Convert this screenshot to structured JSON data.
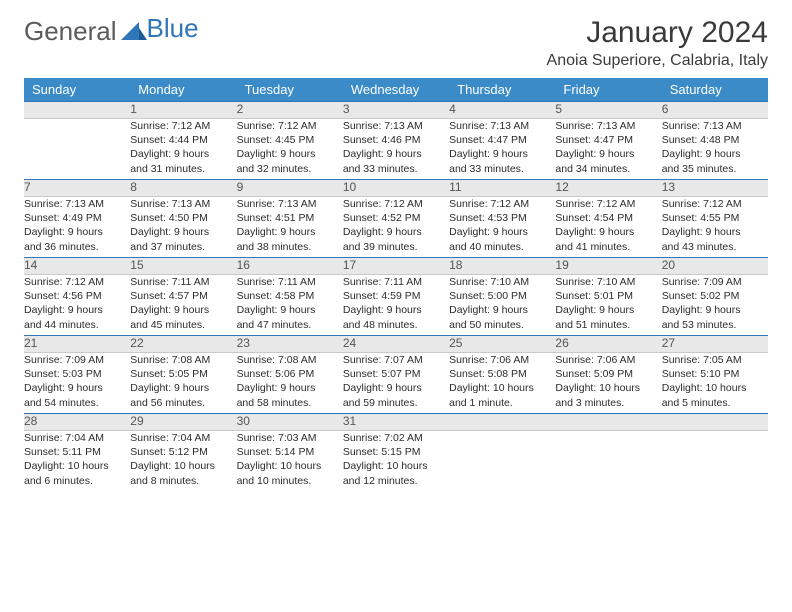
{
  "logo": {
    "partA": "General",
    "partB": "Blue"
  },
  "title": "January 2024",
  "location": "Anoia Superiore, Calabria, Italy",
  "weekdays": [
    "Sunday",
    "Monday",
    "Tuesday",
    "Wednesday",
    "Thursday",
    "Friday",
    "Saturday"
  ],
  "colors": {
    "header_bg": "#3b8bc9",
    "daynum_bg": "#e8e8e8",
    "daynum_border_top": "#2f76b8"
  },
  "weeks": [
    [
      {
        "n": "",
        "sr": "",
        "ss": "",
        "dl1": "",
        "dl2": ""
      },
      {
        "n": "1",
        "sr": "Sunrise: 7:12 AM",
        "ss": "Sunset: 4:44 PM",
        "dl1": "Daylight: 9 hours",
        "dl2": "and 31 minutes."
      },
      {
        "n": "2",
        "sr": "Sunrise: 7:12 AM",
        "ss": "Sunset: 4:45 PM",
        "dl1": "Daylight: 9 hours",
        "dl2": "and 32 minutes."
      },
      {
        "n": "3",
        "sr": "Sunrise: 7:13 AM",
        "ss": "Sunset: 4:46 PM",
        "dl1": "Daylight: 9 hours",
        "dl2": "and 33 minutes."
      },
      {
        "n": "4",
        "sr": "Sunrise: 7:13 AM",
        "ss": "Sunset: 4:47 PM",
        "dl1": "Daylight: 9 hours",
        "dl2": "and 33 minutes."
      },
      {
        "n": "5",
        "sr": "Sunrise: 7:13 AM",
        "ss": "Sunset: 4:47 PM",
        "dl1": "Daylight: 9 hours",
        "dl2": "and 34 minutes."
      },
      {
        "n": "6",
        "sr": "Sunrise: 7:13 AM",
        "ss": "Sunset: 4:48 PM",
        "dl1": "Daylight: 9 hours",
        "dl2": "and 35 minutes."
      }
    ],
    [
      {
        "n": "7",
        "sr": "Sunrise: 7:13 AM",
        "ss": "Sunset: 4:49 PM",
        "dl1": "Daylight: 9 hours",
        "dl2": "and 36 minutes."
      },
      {
        "n": "8",
        "sr": "Sunrise: 7:13 AM",
        "ss": "Sunset: 4:50 PM",
        "dl1": "Daylight: 9 hours",
        "dl2": "and 37 minutes."
      },
      {
        "n": "9",
        "sr": "Sunrise: 7:13 AM",
        "ss": "Sunset: 4:51 PM",
        "dl1": "Daylight: 9 hours",
        "dl2": "and 38 minutes."
      },
      {
        "n": "10",
        "sr": "Sunrise: 7:12 AM",
        "ss": "Sunset: 4:52 PM",
        "dl1": "Daylight: 9 hours",
        "dl2": "and 39 minutes."
      },
      {
        "n": "11",
        "sr": "Sunrise: 7:12 AM",
        "ss": "Sunset: 4:53 PM",
        "dl1": "Daylight: 9 hours",
        "dl2": "and 40 minutes."
      },
      {
        "n": "12",
        "sr": "Sunrise: 7:12 AM",
        "ss": "Sunset: 4:54 PM",
        "dl1": "Daylight: 9 hours",
        "dl2": "and 41 minutes."
      },
      {
        "n": "13",
        "sr": "Sunrise: 7:12 AM",
        "ss": "Sunset: 4:55 PM",
        "dl1": "Daylight: 9 hours",
        "dl2": "and 43 minutes."
      }
    ],
    [
      {
        "n": "14",
        "sr": "Sunrise: 7:12 AM",
        "ss": "Sunset: 4:56 PM",
        "dl1": "Daylight: 9 hours",
        "dl2": "and 44 minutes."
      },
      {
        "n": "15",
        "sr": "Sunrise: 7:11 AM",
        "ss": "Sunset: 4:57 PM",
        "dl1": "Daylight: 9 hours",
        "dl2": "and 45 minutes."
      },
      {
        "n": "16",
        "sr": "Sunrise: 7:11 AM",
        "ss": "Sunset: 4:58 PM",
        "dl1": "Daylight: 9 hours",
        "dl2": "and 47 minutes."
      },
      {
        "n": "17",
        "sr": "Sunrise: 7:11 AM",
        "ss": "Sunset: 4:59 PM",
        "dl1": "Daylight: 9 hours",
        "dl2": "and 48 minutes."
      },
      {
        "n": "18",
        "sr": "Sunrise: 7:10 AM",
        "ss": "Sunset: 5:00 PM",
        "dl1": "Daylight: 9 hours",
        "dl2": "and 50 minutes."
      },
      {
        "n": "19",
        "sr": "Sunrise: 7:10 AM",
        "ss": "Sunset: 5:01 PM",
        "dl1": "Daylight: 9 hours",
        "dl2": "and 51 minutes."
      },
      {
        "n": "20",
        "sr": "Sunrise: 7:09 AM",
        "ss": "Sunset: 5:02 PM",
        "dl1": "Daylight: 9 hours",
        "dl2": "and 53 minutes."
      }
    ],
    [
      {
        "n": "21",
        "sr": "Sunrise: 7:09 AM",
        "ss": "Sunset: 5:03 PM",
        "dl1": "Daylight: 9 hours",
        "dl2": "and 54 minutes."
      },
      {
        "n": "22",
        "sr": "Sunrise: 7:08 AM",
        "ss": "Sunset: 5:05 PM",
        "dl1": "Daylight: 9 hours",
        "dl2": "and 56 minutes."
      },
      {
        "n": "23",
        "sr": "Sunrise: 7:08 AM",
        "ss": "Sunset: 5:06 PM",
        "dl1": "Daylight: 9 hours",
        "dl2": "and 58 minutes."
      },
      {
        "n": "24",
        "sr": "Sunrise: 7:07 AM",
        "ss": "Sunset: 5:07 PM",
        "dl1": "Daylight: 9 hours",
        "dl2": "and 59 minutes."
      },
      {
        "n": "25",
        "sr": "Sunrise: 7:06 AM",
        "ss": "Sunset: 5:08 PM",
        "dl1": "Daylight: 10 hours",
        "dl2": "and 1 minute."
      },
      {
        "n": "26",
        "sr": "Sunrise: 7:06 AM",
        "ss": "Sunset: 5:09 PM",
        "dl1": "Daylight: 10 hours",
        "dl2": "and 3 minutes."
      },
      {
        "n": "27",
        "sr": "Sunrise: 7:05 AM",
        "ss": "Sunset: 5:10 PM",
        "dl1": "Daylight: 10 hours",
        "dl2": "and 5 minutes."
      }
    ],
    [
      {
        "n": "28",
        "sr": "Sunrise: 7:04 AM",
        "ss": "Sunset: 5:11 PM",
        "dl1": "Daylight: 10 hours",
        "dl2": "and 6 minutes."
      },
      {
        "n": "29",
        "sr": "Sunrise: 7:04 AM",
        "ss": "Sunset: 5:12 PM",
        "dl1": "Daylight: 10 hours",
        "dl2": "and 8 minutes."
      },
      {
        "n": "30",
        "sr": "Sunrise: 7:03 AM",
        "ss": "Sunset: 5:14 PM",
        "dl1": "Daylight: 10 hours",
        "dl2": "and 10 minutes."
      },
      {
        "n": "31",
        "sr": "Sunrise: 7:02 AM",
        "ss": "Sunset: 5:15 PM",
        "dl1": "Daylight: 10 hours",
        "dl2": "and 12 minutes."
      },
      {
        "n": "",
        "sr": "",
        "ss": "",
        "dl1": "",
        "dl2": ""
      },
      {
        "n": "",
        "sr": "",
        "ss": "",
        "dl1": "",
        "dl2": ""
      },
      {
        "n": "",
        "sr": "",
        "ss": "",
        "dl1": "",
        "dl2": ""
      }
    ]
  ]
}
